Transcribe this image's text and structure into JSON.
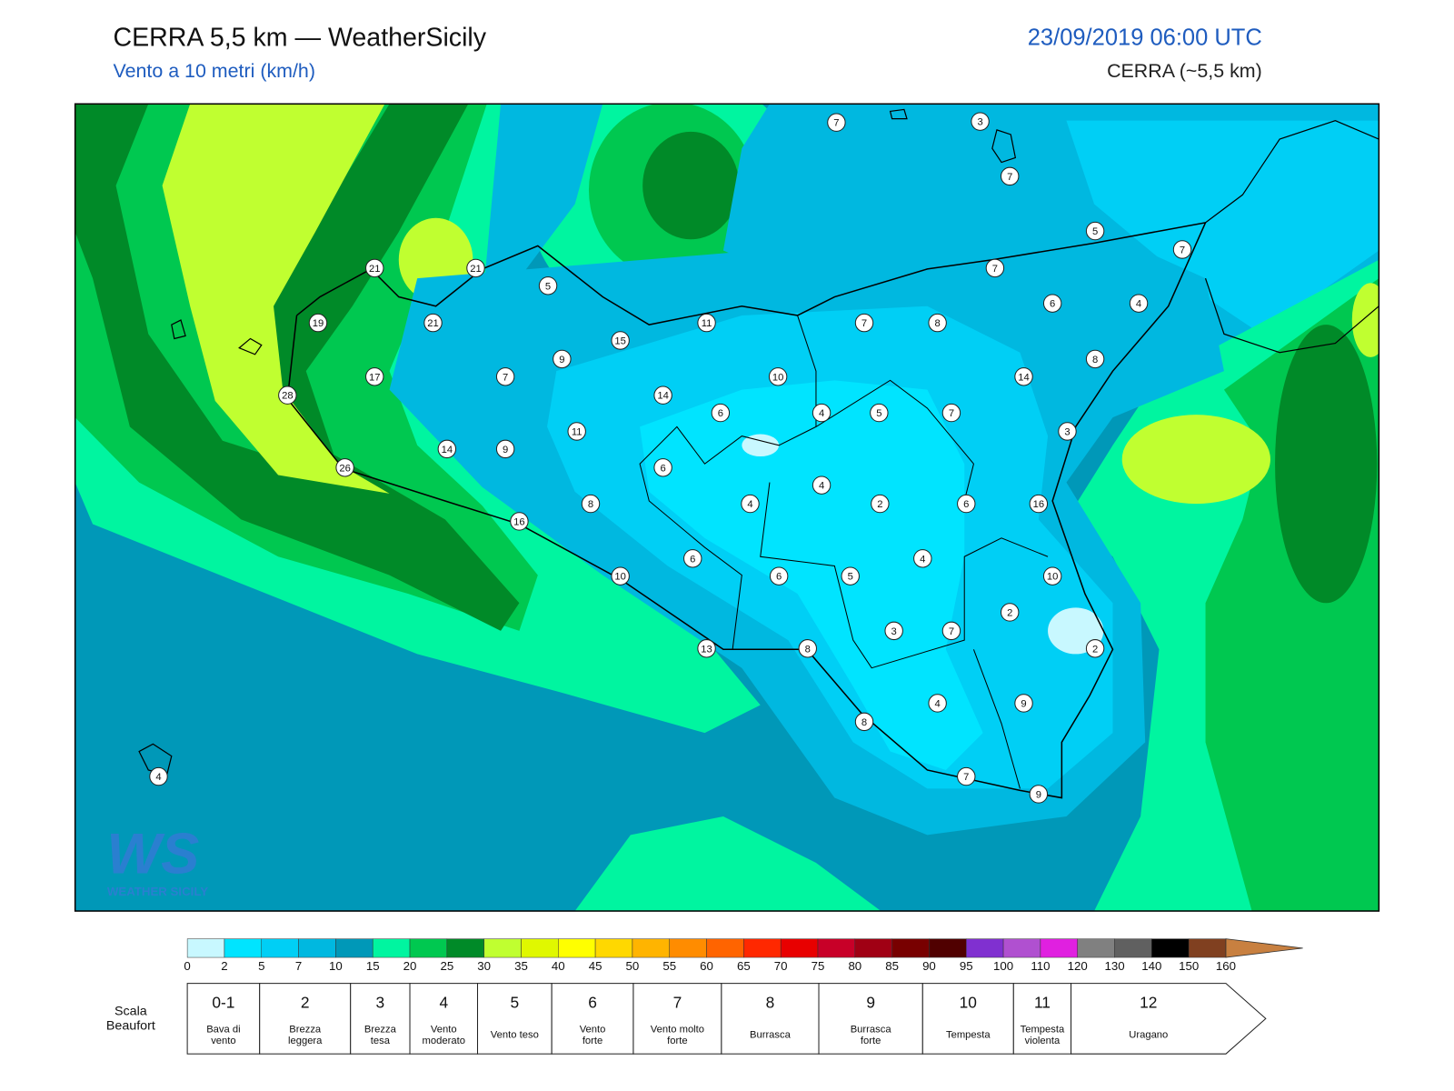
{
  "header": {
    "title": "CERRA 5,5 km — WeatherSicily",
    "subtitle": "Vento a 10 metri (km/h)",
    "datetime": "23/09/2019 06:00 UTC",
    "model": "CERRA (~5,5 km)"
  },
  "stations": [
    7,
    3,
    7,
    5,
    7,
    7,
    21,
    21,
    5,
    6,
    4,
    19,
    21,
    11,
    7,
    8,
    15,
    9,
    8,
    17,
    7,
    10,
    14,
    14,
    28,
    6,
    4,
    5,
    7,
    11,
    3,
    14,
    9,
    26,
    6,
    4,
    8,
    4,
    2,
    6,
    16,
    16,
    6,
    4,
    10,
    6,
    5,
    10,
    2,
    3,
    7,
    13,
    8,
    2,
    4,
    9,
    8,
    4,
    7,
    9
  ],
  "logo": {
    "mark": "WS",
    "name": "WEATHER SICILY"
  },
  "colorbar": {
    "ticks": [
      0,
      2,
      5,
      7,
      10,
      15,
      20,
      25,
      30,
      35,
      40,
      45,
      50,
      55,
      60,
      65,
      70,
      75,
      80,
      85,
      90,
      95,
      100,
      110,
      120,
      130,
      140,
      150,
      160
    ],
    "colors": [
      "#c8f8ff",
      "#00e4ff",
      "#00cff5",
      "#00b8e0",
      "#0098b8",
      "#00f5a0",
      "#00c850",
      "#008a28",
      "#c0ff30",
      "#e0f800",
      "#ffff00",
      "#ffd800",
      "#ffb400",
      "#ff8c00",
      "#ff6400",
      "#ff2800",
      "#e80000",
      "#c80028",
      "#a00014",
      "#780000",
      "#500000",
      "#8030d0",
      "#b050d0",
      "#e020e0",
      "#808080",
      "#606060",
      "#000000",
      "#804020",
      "#c88040"
    ]
  },
  "beaufort": {
    "label": "Scala\nBeaufort",
    "levels": [
      {
        "force": "0-1",
        "name": "Bava di\nvento"
      },
      {
        "force": "2",
        "name": "Brezza\nleggera"
      },
      {
        "force": "3",
        "name": "Brezza\ntesa"
      },
      {
        "force": "4",
        "name": "Vento\nmoderato"
      },
      {
        "force": "5",
        "name": "Vento teso"
      },
      {
        "force": "6",
        "name": "Vento\nforte"
      },
      {
        "force": "7",
        "name": "Vento molto\nforte"
      },
      {
        "force": "8",
        "name": "Burrasca"
      },
      {
        "force": "9",
        "name": "Burrasca\nforte"
      },
      {
        "force": "10",
        "name": "Tempesta"
      },
      {
        "force": "11",
        "name": "Tempesta\nviolenta"
      },
      {
        "force": "12",
        "name": "Uragano"
      }
    ]
  }
}
